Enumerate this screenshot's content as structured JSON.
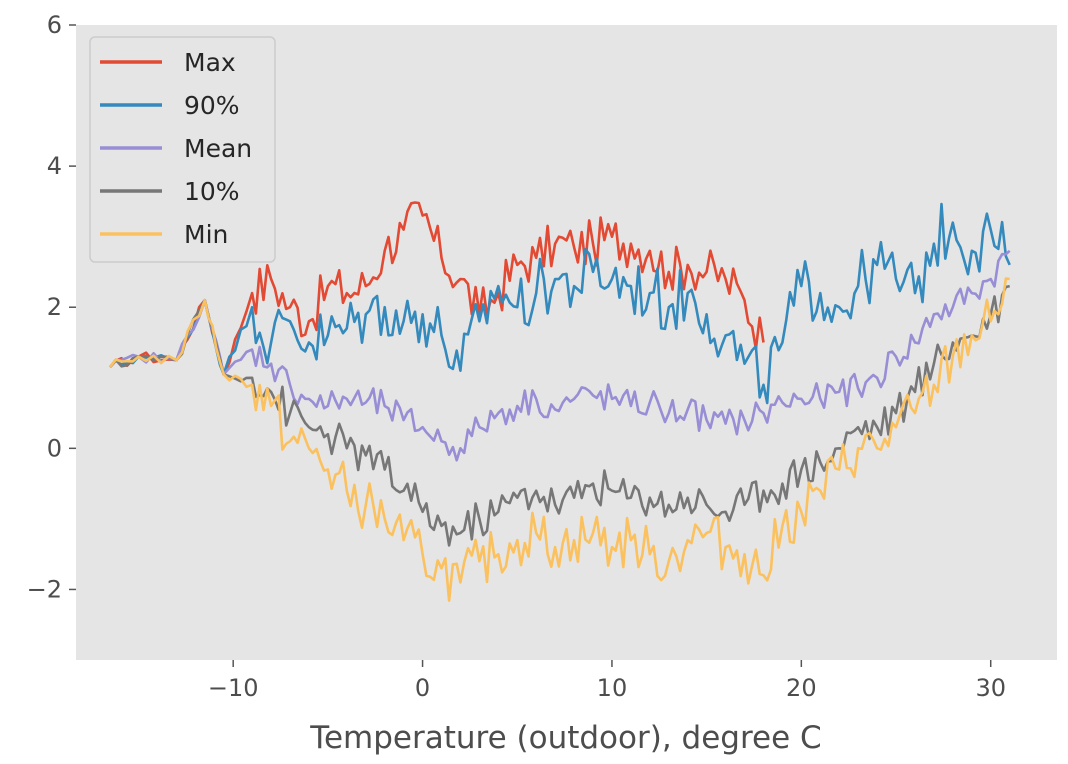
{
  "chart_data": {
    "type": "line",
    "title": "",
    "xlabel": "Temperature (outdoor), degree C",
    "ylabel": "",
    "xlim": [
      -18.3,
      33.5
    ],
    "ylim": [
      -3.0,
      6.0
    ],
    "x_ticks": [
      -10,
      0,
      10,
      20,
      30
    ],
    "x_tick_labels": [
      "−10",
      "0",
      "10",
      "20",
      "30"
    ],
    "y_ticks": [
      -2,
      0,
      2,
      4,
      6
    ],
    "y_tick_labels": [
      "−2",
      "0",
      "2",
      "4",
      "6"
    ],
    "grid": false,
    "legend_position": "top-left",
    "series": [
      {
        "name": "Max",
        "color": "#e24a33",
        "x": [
          -16.5,
          -15,
          -13,
          -11.5,
          -10.5,
          -9,
          -8,
          -7,
          -6,
          -5,
          -4,
          -3,
          -2,
          -1,
          0,
          1,
          2,
          3,
          4,
          5,
          6,
          7,
          8,
          9,
          10,
          11,
          12,
          13,
          14,
          15,
          16,
          17,
          18
        ],
        "y": [
          1.15,
          1.3,
          1.25,
          2.1,
          1.05,
          2.2,
          2.4,
          2.0,
          1.8,
          2.3,
          2.2,
          2.3,
          2.8,
          3.1,
          3.3,
          2.7,
          2.4,
          1.9,
          2.2,
          2.6,
          2.7,
          2.9,
          2.85,
          2.9,
          3.0,
          2.9,
          2.8,
          2.5,
          2.6,
          2.5,
          2.4,
          2.1,
          1.5
        ]
      },
      {
        "name": "90%",
        "color": "#348abd",
        "x": [
          -16.5,
          -15,
          -13,
          -11.5,
          -10.5,
          -9,
          -8,
          -7,
          -6,
          -5,
          -4,
          -3,
          -2,
          -1,
          0,
          1,
          2,
          3,
          4,
          5,
          6,
          7,
          8,
          9,
          10,
          11,
          12,
          13,
          14,
          15,
          16,
          17,
          18,
          19,
          20,
          21,
          22,
          23,
          24,
          25,
          26,
          27,
          28,
          29,
          30,
          31
        ],
        "y": [
          1.15,
          1.3,
          1.25,
          2.1,
          1.05,
          2.0,
          1.5,
          1.8,
          1.5,
          1.6,
          1.7,
          1.9,
          2.0,
          1.8,
          1.9,
          1.6,
          1.1,
          1.8,
          2.3,
          2.0,
          2.2,
          2.4,
          2.3,
          2.5,
          2.4,
          2.3,
          2.2,
          2.0,
          2.2,
          1.9,
          1.6,
          1.2,
          0.9,
          1.5,
          2.3,
          2.2,
          2.0,
          2.3,
          2.6,
          2.4,
          2.2,
          2.9,
          3.2,
          2.8,
          3.1,
          2.6
        ]
      },
      {
        "name": "Mean",
        "color": "#988ed5",
        "x": [
          -16.5,
          -15,
          -13,
          -11.5,
          -10.5,
          -9,
          -8,
          -7,
          -6,
          -5,
          -4,
          -3,
          -2,
          -1,
          0,
          1,
          2,
          3,
          4,
          5,
          6,
          7,
          8,
          9,
          10,
          11,
          12,
          13,
          14,
          15,
          16,
          17,
          18,
          19,
          20,
          21,
          22,
          23,
          24,
          25,
          26,
          27,
          28,
          29,
          30,
          31
        ],
        "y": [
          1.15,
          1.3,
          1.25,
          2.1,
          1.05,
          1.4,
          1.2,
          0.9,
          0.7,
          0.6,
          0.7,
          0.65,
          0.6,
          0.4,
          0.3,
          0.1,
          0.0,
          0.3,
          0.5,
          0.6,
          0.7,
          0.55,
          0.7,
          0.75,
          0.7,
          0.6,
          0.65,
          0.5,
          0.55,
          0.4,
          0.35,
          0.4,
          0.5,
          0.65,
          0.7,
          0.7,
          0.8,
          0.85,
          1.0,
          1.3,
          1.5,
          1.9,
          2.0,
          2.2,
          2.4,
          2.8
        ]
      },
      {
        "name": "10%",
        "color": "#777777",
        "x": [
          -16.5,
          -15,
          -13,
          -11.5,
          -10.5,
          -9,
          -8,
          -7,
          -6,
          -5,
          -4,
          -3,
          -2,
          -1,
          0,
          1,
          2,
          3,
          4,
          5,
          6,
          7,
          8,
          9,
          10,
          11,
          12,
          13,
          14,
          15,
          16,
          17,
          18,
          19,
          20,
          21,
          22,
          23,
          24,
          25,
          26,
          27,
          28,
          29,
          30,
          31
        ],
        "y": [
          1.15,
          1.3,
          1.25,
          2.1,
          1.05,
          1.0,
          0.8,
          0.5,
          0.3,
          0.2,
          0.0,
          -0.1,
          -0.3,
          -0.6,
          -0.9,
          -1.1,
          -1.2,
          -1.0,
          -0.9,
          -0.7,
          -0.6,
          -0.8,
          -0.7,
          -0.5,
          -0.6,
          -0.7,
          -0.7,
          -0.8,
          -0.7,
          -0.8,
          -0.9,
          -0.8,
          -0.6,
          -0.5,
          -0.3,
          -0.2,
          0.0,
          0.3,
          0.3,
          0.5,
          0.8,
          1.2,
          1.5,
          1.6,
          1.9,
          2.3
        ]
      },
      {
        "name": "Min",
        "color": "#fbc15e",
        "x": [
          -16.5,
          -15,
          -13,
          -11.5,
          -10.5,
          -9,
          -8,
          -7,
          -6,
          -5,
          -4,
          -3,
          -2,
          -1,
          0,
          1,
          2,
          3,
          4,
          5,
          6,
          7,
          8,
          9,
          10,
          11,
          12,
          13,
          14,
          15,
          16,
          17,
          18,
          19,
          20,
          21,
          22,
          23,
          24,
          25,
          26,
          27,
          28,
          29,
          30,
          31
        ],
        "y": [
          1.15,
          1.3,
          1.25,
          2.1,
          1.05,
          0.9,
          0.6,
          0.1,
          0.0,
          -0.3,
          -0.6,
          -0.8,
          -1.0,
          -1.3,
          -1.5,
          -1.7,
          -1.9,
          -1.6,
          -1.5,
          -1.3,
          -1.2,
          -1.4,
          -1.3,
          -1.2,
          -1.4,
          -1.3,
          -1.5,
          -1.6,
          -1.3,
          -1.2,
          -1.4,
          -1.5,
          -1.8,
          -1.1,
          -0.9,
          -0.6,
          -0.3,
          0.0,
          0.0,
          0.3,
          0.5,
          0.9,
          1.3,
          1.6,
          1.8,
          2.4
        ]
      }
    ]
  }
}
